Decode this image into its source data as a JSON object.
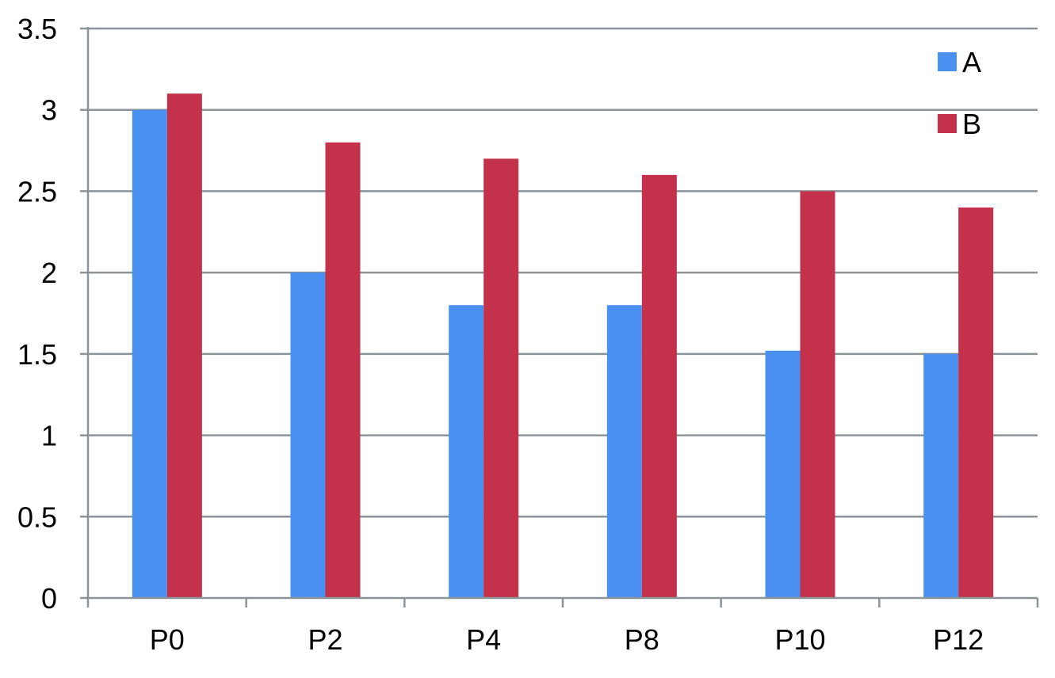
{
  "chart_data": {
    "type": "bar",
    "categories": [
      "P0",
      "P2",
      "P4",
      "P8",
      "P10",
      "P12"
    ],
    "series": [
      {
        "name": "A",
        "color": "#4a90f0",
        "values": [
          3.0,
          2.0,
          1.8,
          1.8,
          1.52,
          1.5
        ]
      },
      {
        "name": "B",
        "color": "#c3314a",
        "values": [
          3.1,
          2.8,
          2.7,
          2.6,
          2.5,
          2.4
        ]
      }
    ],
    "ylim": [
      0,
      3.5
    ],
    "yticks": [
      "0",
      "0.5",
      "1",
      "1.5",
      "2",
      "2.5",
      "3",
      "3.5"
    ],
    "grid": true,
    "legend_position": "top-right",
    "axis_color": "#8a9499"
  }
}
